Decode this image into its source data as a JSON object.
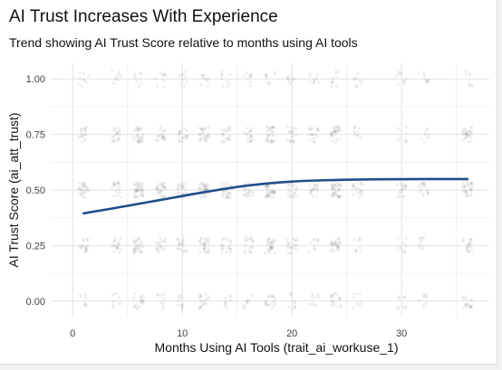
{
  "chart_data": {
    "type": "scatter",
    "title": "AI Trust Increases With Experience",
    "subtitle": "Trend showing AI Trust Score relative to months using AI tools",
    "xlabel": "Months Using AI Tools (trait_ai_workuse_1)",
    "ylabel": "AI Trust Score (ai_att_trust)",
    "xlim": [
      -2,
      38
    ],
    "ylim": [
      -0.07,
      1.07
    ],
    "x_ticks": [
      0,
      10,
      20,
      30
    ],
    "y_ticks": [
      0.0,
      0.25,
      0.5,
      0.75,
      1.0
    ],
    "x_tick_labels": [
      "0",
      "10",
      "20",
      "30"
    ],
    "y_tick_labels": [
      "0.00",
      "0.25",
      "0.50",
      "0.75",
      "1.00"
    ],
    "grid": true,
    "point_color": "#555555",
    "trend_color": "#1f4e8c",
    "point_columns_x": [
      1,
      4,
      6,
      8,
      10,
      12,
      14,
      16,
      18,
      20,
      22,
      24,
      26,
      30,
      32,
      36
    ],
    "point_levels_y": [
      0.0,
      0.25,
      0.5,
      0.75,
      1.0
    ],
    "point_density": [
      [
        1,
        2,
        3,
        2,
        1
      ],
      [
        1,
        2,
        2,
        2,
        1
      ],
      [
        2,
        3,
        4,
        3,
        1
      ],
      [
        1,
        2,
        3,
        2,
        1
      ],
      [
        1,
        2,
        3,
        2,
        1
      ],
      [
        2,
        3,
        4,
        3,
        1
      ],
      [
        1,
        2,
        3,
        2,
        1
      ],
      [
        1,
        2,
        2,
        2,
        1
      ],
      [
        2,
        3,
        4,
        3,
        1
      ],
      [
        1,
        2,
        2,
        2,
        1
      ],
      [
        1,
        1,
        2,
        2,
        1
      ],
      [
        2,
        3,
        4,
        3,
        1
      ],
      [
        1,
        1,
        2,
        1,
        1
      ],
      [
        1,
        1,
        2,
        1,
        1
      ],
      [
        1,
        1,
        2,
        1,
        1
      ],
      [
        2,
        2,
        3,
        3,
        1
      ]
    ],
    "series": [
      {
        "type": "smooth_line",
        "x": [
          1,
          4,
          8,
          12,
          16,
          20,
          24,
          28,
          32,
          36
        ],
        "y": [
          0.395,
          0.42,
          0.455,
          0.49,
          0.52,
          0.538,
          0.545,
          0.548,
          0.549,
          0.549
        ]
      }
    ]
  }
}
